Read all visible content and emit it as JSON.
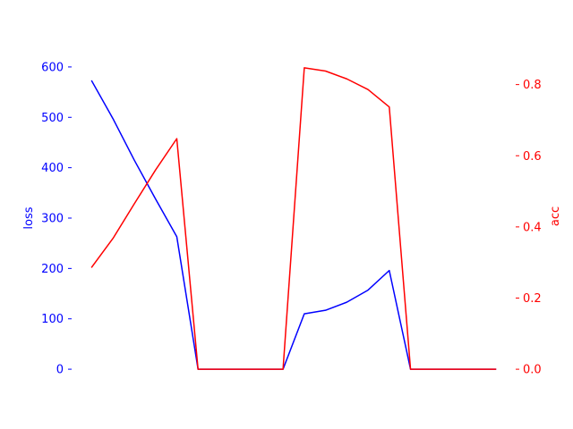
{
  "chart_data": {
    "type": "line",
    "x": [
      0,
      1,
      2,
      3,
      4,
      5,
      6,
      7,
      8,
      9,
      10,
      11,
      12,
      13,
      14,
      15,
      16,
      17,
      18,
      19
    ],
    "xlim": [
      -0.95,
      19.95
    ],
    "series": [
      {
        "axis": "left",
        "color": "#0000ff",
        "values": [
          572,
          497,
          415,
          338,
          263,
          0,
          0,
          0,
          0,
          0,
          110,
          117,
          133,
          157,
          196,
          0,
          0,
          0,
          0,
          0
        ]
      },
      {
        "axis": "right",
        "color": "#ff0000",
        "values": [
          0.287,
          0.368,
          0.465,
          0.56,
          0.648,
          0,
          0,
          0,
          0,
          0,
          0.847,
          0.838,
          0.816,
          0.786,
          0.737,
          0,
          0,
          0,
          0,
          0
        ]
      }
    ],
    "left_axis": {
      "label": "loss",
      "color": "#0000ff",
      "ylim": [
        -30,
        630
      ],
      "ticks": [
        0,
        100,
        200,
        300,
        400,
        500,
        600
      ],
      "tick_labels": [
        "0",
        "100",
        "200",
        "300",
        "400",
        "500",
        "600"
      ]
    },
    "right_axis": {
      "label": "acc",
      "color": "#ff0000",
      "ylim": [
        -0.0424,
        0.892
      ],
      "ticks": [
        0,
        0.2,
        0.4,
        0.6,
        0.8
      ],
      "tick_labels": [
        "0.0",
        "0.2",
        "0.4",
        "0.6",
        "0.8"
      ]
    },
    "grid": false,
    "legend": "none"
  }
}
